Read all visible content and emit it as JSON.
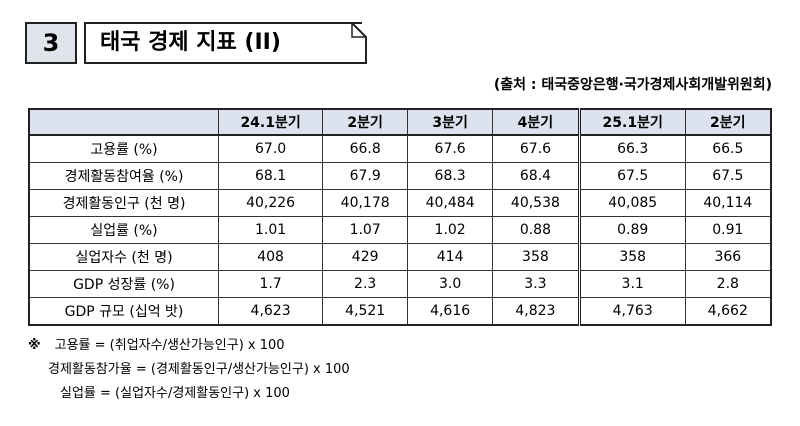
{
  "header": {
    "number": "3",
    "title": "태국 경제 지표 (II)"
  },
  "source": "(출처 : 태국중앙은행·국가경제사회개발위원회)",
  "table": {
    "columns": [
      "24.1분기",
      "2분기",
      "3분기",
      "4분기",
      "25.1분기",
      "2분기"
    ],
    "rows": [
      {
        "label": "고용률 (%)",
        "values": [
          "67.0",
          "66.8",
          "67.6",
          "67.6",
          "66.3",
          "66.5"
        ]
      },
      {
        "label": "경제활동참여율 (%)",
        "values": [
          "68.1",
          "67.9",
          "68.3",
          "68.4",
          "67.5",
          "67.5"
        ]
      },
      {
        "label": "경제활동인구 (천 명)",
        "values": [
          "40,226",
          "40,178",
          "40,484",
          "40,538",
          "40,085",
          "40,114"
        ]
      },
      {
        "label": "실업률 (%)",
        "values": [
          "1.01",
          "1.07",
          "1.02",
          "0.88",
          "0.89",
          "0.91"
        ]
      },
      {
        "label": "실업자수 (천 명)",
        "values": [
          "408",
          "429",
          "414",
          "358",
          "358",
          "366"
        ]
      },
      {
        "label": "GDP 성장률 (%)",
        "values": [
          "1.7",
          "2.3",
          "3.0",
          "3.3",
          "3.1",
          "2.8"
        ]
      },
      {
        "label": "GDP 규모 (십억 밧)",
        "values": [
          "4,623",
          "4,521",
          "4,616",
          "4,823",
          "4,763",
          "4,662"
        ]
      }
    ]
  },
  "notes": {
    "marker": "※",
    "lines": [
      "고용률 = (취업자수/생산가능인구) x 100",
      "경제활동참가율 = (경제활동인구/생산가능인구) x 100",
      "실업률 = (실업자수/경제활동인구) x 100"
    ]
  }
}
